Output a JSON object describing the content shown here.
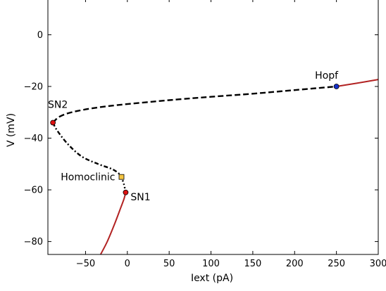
{
  "chart_data": {
    "type": "line",
    "title": "",
    "xlabel": "Iext (pA)",
    "ylabel": "V (mV)",
    "xlim": [
      -95,
      300
    ],
    "ylim": [
      -85,
      14
    ],
    "grid": false,
    "xticks": [
      {
        "value": -50,
        "label": "−50"
      },
      {
        "value": 0,
        "label": "0"
      },
      {
        "value": 50,
        "label": "50"
      },
      {
        "value": 100,
        "label": "100"
      },
      {
        "value": 150,
        "label": "150"
      },
      {
        "value": 200,
        "label": "200"
      },
      {
        "value": 250,
        "label": "250"
      },
      {
        "value": 300,
        "label": "300"
      }
    ],
    "yticks": [
      {
        "value": 0,
        "label": "0"
      },
      {
        "value": -20,
        "label": "−20"
      },
      {
        "value": -40,
        "label": "−40"
      },
      {
        "value": -60,
        "label": "−60"
      },
      {
        "value": -80,
        "label": "−80"
      }
    ],
    "series": [
      {
        "id": "stable-lower",
        "color": "#b22222",
        "style": "solid",
        "points": [
          [
            -32,
            -85
          ],
          [
            -24,
            -80
          ],
          [
            -15,
            -73
          ],
          [
            -8,
            -67
          ],
          [
            -4,
            -63.5
          ],
          [
            -2,
            -61
          ]
        ]
      },
      {
        "id": "unstable-middle",
        "color": "#000000",
        "style": "dashdot",
        "points": [
          [
            -89,
            -34
          ],
          [
            -84,
            -37
          ],
          [
            -72,
            -42
          ],
          [
            -55,
            -47
          ],
          [
            -35,
            -50
          ],
          [
            -18,
            -52
          ],
          [
            -9,
            -54
          ],
          [
            -7,
            -55
          ]
        ]
      },
      {
        "id": "homoclinic-connector",
        "color": "#000000",
        "style": "dotted",
        "points": [
          [
            -7,
            -55
          ],
          [
            -4,
            -58
          ],
          [
            -2,
            -61
          ]
        ]
      },
      {
        "id": "unstable-upper",
        "color": "#000000",
        "style": "dashed",
        "points": [
          [
            -89,
            -34
          ],
          [
            -80,
            -31.5
          ],
          [
            -60,
            -29.5
          ],
          [
            -20,
            -27.5
          ],
          [
            50,
            -25.3
          ],
          [
            100,
            -24
          ],
          [
            150,
            -22.8
          ],
          [
            200,
            -21.4
          ],
          [
            250,
            -20
          ]
        ]
      },
      {
        "id": "stable-upper",
        "color": "#b22222",
        "style": "solid",
        "points": [
          [
            250,
            -20
          ],
          [
            275,
            -18.7
          ],
          [
            300,
            -17.3
          ]
        ]
      }
    ],
    "points": [
      {
        "id": "sn2",
        "label": "SN2",
        "x": -89,
        "y": -34,
        "marker": "circle",
        "color": "#dd1111",
        "label_anchor": "above-left"
      },
      {
        "id": "sn1",
        "label": "SN1",
        "x": -2,
        "y": -61,
        "marker": "circle",
        "color": "#dd1111",
        "label_anchor": "right"
      },
      {
        "id": "homoclinic",
        "label": "Homoclinic",
        "x": -7,
        "y": -55,
        "marker": "square",
        "color": "#f5c542",
        "label_anchor": "left"
      },
      {
        "id": "hopf",
        "label": "Hopf",
        "x": 250,
        "y": -20,
        "marker": "circle",
        "color": "#1530c8",
        "label_anchor": "above"
      }
    ]
  }
}
